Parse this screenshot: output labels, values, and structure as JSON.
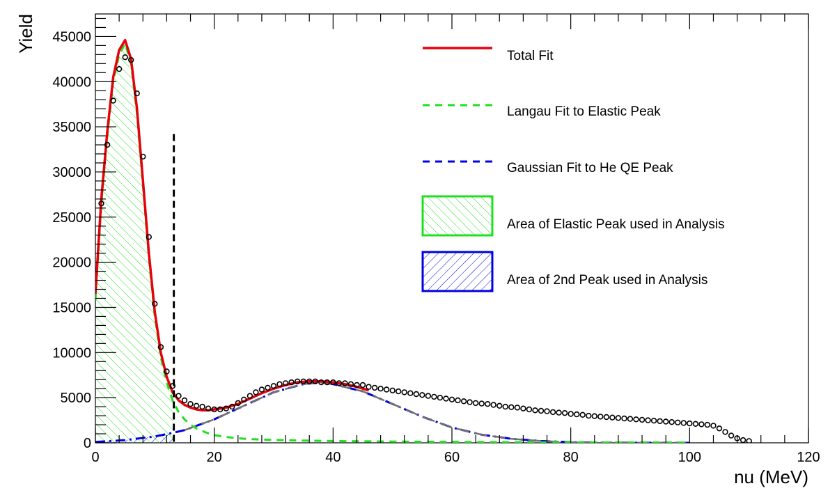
{
  "chart_data": {
    "type": "line",
    "xlabel": "nu (MeV)",
    "ylabel": "Yield",
    "xlim": [
      0,
      120
    ],
    "ylim": [
      0,
      47500
    ],
    "grid": false,
    "legend_position": "top-right",
    "x_ticks": [
      0,
      20,
      40,
      60,
      80,
      100,
      120
    ],
    "x_tick_labels": [
      "0",
      "20",
      "40",
      "60",
      "80",
      "100",
      "120"
    ],
    "y_ticks": [
      0,
      5000,
      10000,
      15000,
      20000,
      25000,
      30000,
      35000,
      40000,
      45000
    ],
    "y_tick_labels": [
      "0",
      "5000",
      "10000",
      "15000",
      "20000",
      "25000",
      "30000",
      "35000",
      "40000",
      "45000"
    ],
    "cut_line_x": 13.2,
    "elastic_area_range": [
      0,
      13.2
    ],
    "legend": [
      {
        "label": "Total Fit",
        "style": "line",
        "color": "#e8000b"
      },
      {
        "label": "Langau Fit to Elastic Peak",
        "style": "dashed",
        "color": "#1ee01e"
      },
      {
        "label": "Gaussian Fit to He QE Peak",
        "style": "dashed",
        "color": "#0000e0"
      },
      {
        "label": "Area of Elastic Peak used in Analysis",
        "style": "hatch",
        "color": "#1ee01e"
      },
      {
        "label": "Area of 2nd Peak used in Analysis",
        "style": "hatch",
        "color": "#0000e0"
      }
    ],
    "series": [
      {
        "name": "Data",
        "style": "markers",
        "color": "#000000",
        "x": [
          1,
          2,
          3,
          4,
          5,
          6,
          7,
          8,
          9,
          10,
          11,
          12,
          13,
          14,
          15,
          16,
          17,
          18,
          19,
          20,
          21,
          22,
          23,
          24,
          25,
          26,
          27,
          28,
          29,
          30,
          31,
          32,
          33,
          34,
          35,
          36,
          37,
          38,
          39,
          40,
          41,
          42,
          43,
          44,
          45,
          46,
          47,
          48,
          49,
          50,
          51,
          52,
          53,
          54,
          55,
          56,
          57,
          58,
          59,
          60,
          61,
          62,
          63,
          64,
          65,
          66,
          67,
          68,
          69,
          70,
          71,
          72,
          73,
          74,
          75,
          76,
          77,
          78,
          79,
          80,
          81,
          82,
          83,
          84,
          85,
          86,
          87,
          88,
          89,
          90,
          91,
          92,
          93,
          94,
          95,
          96,
          97,
          98,
          99,
          100,
          101,
          102,
          103,
          104,
          105,
          106,
          107,
          108,
          109,
          110
        ],
        "y": [
          26500,
          33000,
          37900,
          41400,
          42700,
          42400,
          38700,
          31700,
          22800,
          15400,
          10600,
          7900,
          6300,
          5200,
          4700,
          4300,
          4100,
          4000,
          3800,
          3700,
          3700,
          3800,
          4000,
          4400,
          4800,
          5200,
          5600,
          5900,
          6100,
          6300,
          6500,
          6600,
          6700,
          6800,
          6800,
          6800,
          6800,
          6700,
          6700,
          6700,
          6600,
          6600,
          6500,
          6400,
          6400,
          6200,
          6100,
          6000,
          5900,
          5800,
          5700,
          5600,
          5500,
          5400,
          5300,
          5200,
          5100,
          5000,
          4900,
          4800,
          4700,
          4600,
          4500,
          4400,
          4350,
          4300,
          4200,
          4100,
          4000,
          3950,
          3900,
          3800,
          3700,
          3600,
          3550,
          3500,
          3400,
          3350,
          3300,
          3200,
          3150,
          3100,
          3000,
          2950,
          2900,
          2850,
          2800,
          2750,
          2700,
          2650,
          2600,
          2550,
          2500,
          2450,
          2400,
          2350,
          2300,
          2250,
          2200,
          2150,
          2100,
          2050,
          2000,
          1900,
          1600,
          1200,
          800,
          500,
          300,
          200
        ]
      },
      {
        "name": "Total Fit",
        "style": "line",
        "color": "#e8000b",
        "x": [
          0,
          1,
          2,
          3,
          4,
          5,
          6,
          7,
          8,
          9,
          10,
          11,
          12,
          13,
          14,
          15,
          16,
          17,
          18,
          19,
          20,
          22,
          24,
          26,
          28,
          30,
          32,
          34,
          36,
          38,
          40,
          42,
          44,
          46
        ],
        "y": [
          16500,
          27000,
          34500,
          40500,
          43500,
          44600,
          42500,
          37000,
          29000,
          21000,
          14500,
          10000,
          7300,
          5600,
          4700,
          4200,
          3900,
          3700,
          3600,
          3600,
          3700,
          3900,
          4300,
          4900,
          5500,
          6000,
          6400,
          6700,
          6800,
          6800,
          6700,
          6500,
          6200,
          5800
        ]
      },
      {
        "name": "Langau Fit to Elastic Peak",
        "style": "dashed",
        "color": "#1ee01e",
        "x": [
          0,
          1,
          2,
          3,
          4,
          5,
          6,
          7,
          8,
          9,
          10,
          11,
          12,
          13,
          14,
          15,
          16,
          17,
          18,
          19,
          20,
          22,
          24,
          26,
          28,
          30,
          35,
          40,
          50,
          60,
          70,
          80,
          90,
          100
        ],
        "y": [
          15800,
          26500,
          34000,
          40000,
          43000,
          44200,
          42000,
          36500,
          28500,
          20500,
          14000,
          9500,
          6700,
          4700,
          3400,
          2600,
          2000,
          1600,
          1300,
          1050,
          850,
          650,
          500,
          420,
          360,
          320,
          250,
          200,
          140,
          100,
          70,
          50,
          40,
          30
        ]
      },
      {
        "name": "Gaussian Fit to He QE Peak",
        "style": "dashdot",
        "color": "#0000e0",
        "x": [
          0,
          5,
          10,
          13,
          15,
          20,
          25,
          30,
          35,
          38,
          40,
          45,
          50,
          55,
          60,
          65,
          70,
          75,
          80,
          85,
          90,
          95,
          100
        ],
        "y": [
          100,
          300,
          700,
          1100,
          1400,
          2600,
          4100,
          5600,
          6500,
          6700,
          6500,
          5700,
          4300,
          2900,
          1700,
          900,
          450,
          200,
          80,
          30,
          10,
          5,
          2
        ]
      }
    ]
  }
}
